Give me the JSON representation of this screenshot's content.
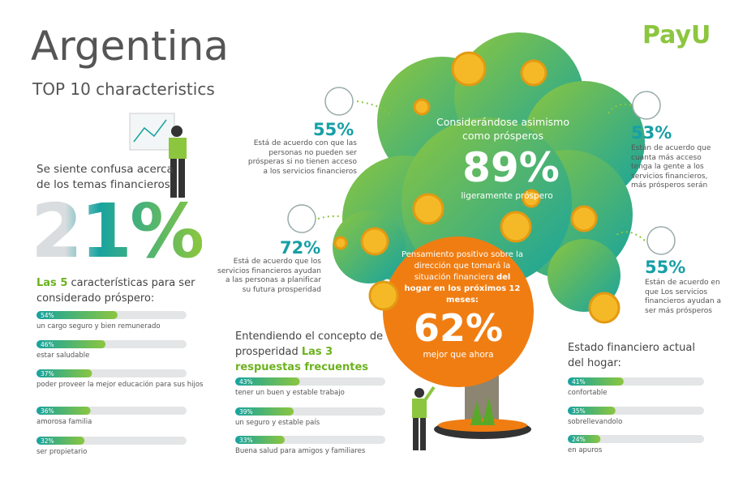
{
  "header": {
    "title": "Argentina",
    "subtitle": "TOP 10 characteristics",
    "logo": "PayU"
  },
  "confused": {
    "text": "Se siente confusa acerca de los temas financieros",
    "percent": "21%"
  },
  "prosperous_traits": {
    "highlight": "Las 5",
    "heading": "características para ser considerado próspero:",
    "items": [
      {
        "value": 54,
        "label": "54%",
        "text": "un cargo seguro y bien remunerado"
      },
      {
        "value": 46,
        "label": "46%",
        "text": "estar saludable"
      },
      {
        "value": 37,
        "label": "37%",
        "text": "poder proveer la mejor educación para sus hijos"
      },
      {
        "value": 36,
        "label": "36%",
        "text": "amorosa familia"
      },
      {
        "value": 32,
        "label": "32%",
        "text": "ser propietario"
      }
    ]
  },
  "stats": [
    {
      "percent": "55%",
      "text": "Está de acuerdo con que las personas no pueden ser prósperas si no tienen acceso a los servicios financieros"
    },
    {
      "percent": "72%",
      "text": "Está de acuerdo que los servicios financieros ayudan a las personas a planificar su futura prosperidad"
    },
    {
      "percent": "53%",
      "text": "Están de acuerdo que cuanta más acceso tenga la gente a los servicios financieros, más prósperos serán"
    },
    {
      "percent": "55%",
      "text": "Están de acuerdo en que Los servicios financieros ayudan a ser más prósperos"
    }
  ],
  "tree": {
    "heading": "Considerándose asimismo como prósperos",
    "percent": "89%",
    "caption": "ligeramente próspero"
  },
  "outlook": {
    "plain": "Pensamiento positivo sobre la dirección que tomará la situación financiera",
    "bold": "del hogar en los próximos 12 meses:",
    "percent": "62%",
    "caption": "mejor que ahora"
  },
  "answers": {
    "heading": "Entendiendo el concepto de prosperidad",
    "highlight": "Las 3 respuestas frecuentes",
    "items": [
      {
        "value": 43,
        "label": "43%",
        "text": "tener un buen y estable trabajo"
      },
      {
        "value": 39,
        "label": "39%",
        "text": "un seguro y estable país"
      },
      {
        "value": 33,
        "label": "33%",
        "text": "Buena salud para amigos y familiares"
      }
    ]
  },
  "household": {
    "heading": "Estado financiero actual del hogar:",
    "items": [
      {
        "value": 41,
        "label": "41%",
        "text": "confortable"
      },
      {
        "value": 35,
        "label": "35%",
        "text": "sobrellevandolo"
      },
      {
        "value": 24,
        "label": "24%",
        "text": "en apuros"
      }
    ]
  }
}
